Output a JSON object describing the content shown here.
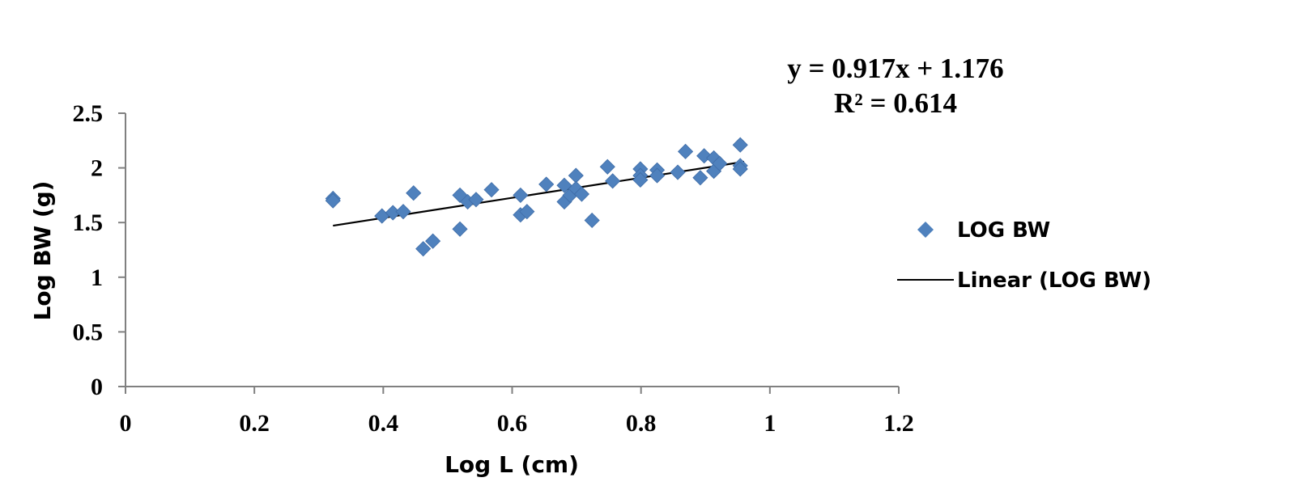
{
  "chart_data": {
    "type": "scatter",
    "title": "",
    "xlabel": "Log L (cm)",
    "ylabel": "Log BW (g)",
    "xlim": [
      0,
      1.2
    ],
    "ylim": [
      0,
      2.5
    ],
    "xticks": [
      "0",
      "0.2",
      "0.4",
      "0.6",
      "0.8",
      "1",
      "1.2"
    ],
    "yticks": [
      "0",
      "0.5",
      "1",
      "1.5",
      "2",
      "2.5"
    ],
    "grid": false,
    "legend_position": "right",
    "annotations": {
      "equation": "y = 0.917x + 1.176",
      "r_squared": "R² = 0.614"
    },
    "series": [
      {
        "name": "LOG BW",
        "kind": "scatter",
        "marker": "diamond",
        "color": "#4f81bd",
        "points": [
          [
            0.322,
            1.72
          ],
          [
            0.322,
            1.7
          ],
          [
            0.398,
            1.56
          ],
          [
            0.415,
            1.59
          ],
          [
            0.431,
            1.6
          ],
          [
            0.447,
            1.77
          ],
          [
            0.462,
            1.26
          ],
          [
            0.477,
            1.33
          ],
          [
            0.519,
            1.75
          ],
          [
            0.519,
            1.44
          ],
          [
            0.531,
            1.69
          ],
          [
            0.544,
            1.71
          ],
          [
            0.568,
            1.8
          ],
          [
            0.613,
            1.75
          ],
          [
            0.613,
            1.57
          ],
          [
            0.623,
            1.6
          ],
          [
            0.653,
            1.85
          ],
          [
            0.681,
            1.84
          ],
          [
            0.681,
            1.69
          ],
          [
            0.69,
            1.75
          ],
          [
            0.699,
            1.93
          ],
          [
            0.699,
            1.81
          ],
          [
            0.708,
            1.76
          ],
          [
            0.724,
            1.52
          ],
          [
            0.748,
            2.01
          ],
          [
            0.756,
            1.88
          ],
          [
            0.799,
            1.99
          ],
          [
            0.799,
            1.93
          ],
          [
            0.799,
            1.89
          ],
          [
            0.825,
            1.98
          ],
          [
            0.825,
            1.93
          ],
          [
            0.857,
            1.96
          ],
          [
            0.869,
            2.15
          ],
          [
            0.892,
            1.91
          ],
          [
            0.898,
            2.11
          ],
          [
            0.913,
            2.09
          ],
          [
            0.913,
            1.97
          ],
          [
            0.922,
            2.04
          ],
          [
            0.954,
            2.21
          ],
          [
            0.954,
            2.02
          ],
          [
            0.954,
            1.99
          ]
        ]
      },
      {
        "name": "Linear (LOG BW)",
        "kind": "trendline",
        "color": "#000000",
        "slope": 0.917,
        "intercept": 1.176,
        "x_range": [
          0.322,
          0.96
        ]
      }
    ]
  }
}
